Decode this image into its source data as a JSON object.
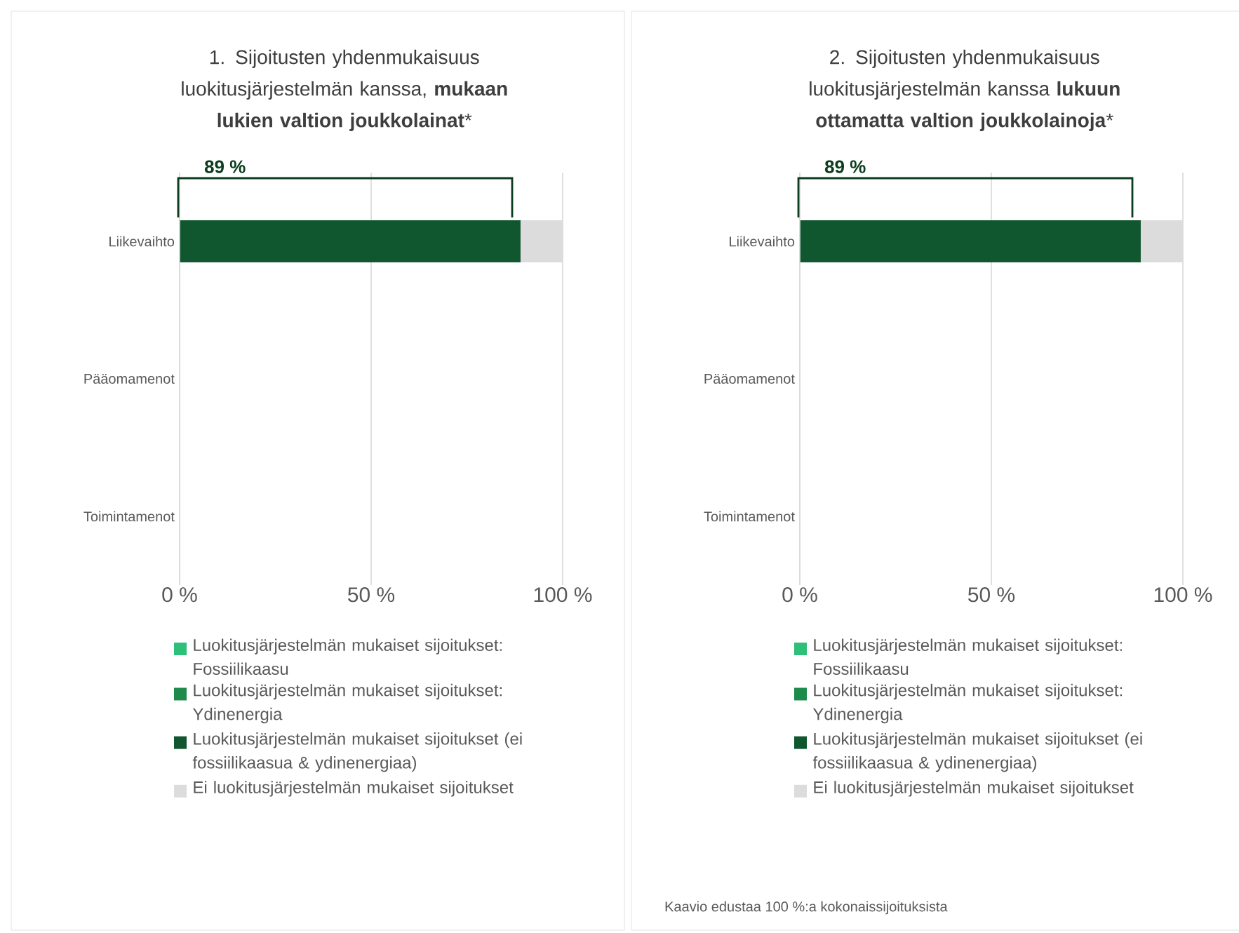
{
  "chart_data": [
    {
      "type": "bar",
      "orientation": "horizontal",
      "stacked": true,
      "title": "1. Sijoitusten yhdenmukaisuus luokitusjärjestelmän kanssa, **mukaan lukien valtion joukkolainat***",
      "categories": [
        "Liikevaihto",
        "Pääomamenot",
        "Toimintamenot"
      ],
      "series": [
        {
          "name": "Luokitusjärjestelmän mukaiset sijoitukset: Fossiilikaasu",
          "color": "#2ebf79",
          "values": [
            0,
            null,
            null
          ]
        },
        {
          "name": "Luokitusjärjestelmän mukaiset sijoitukset: Ydinenergia",
          "color": "#1e8a4c",
          "values": [
            0,
            null,
            null
          ]
        },
        {
          "name": "Luokitusjärjestelmän mukaiset sijoitukset (ei fossiilikaasua & ydinenergiaa)",
          "color": "#10572f",
          "values": [
            89,
            null,
            null
          ]
        },
        {
          "name": "Ei luokitusjärjestelmän mukaiset sijoitukset",
          "color": "#dcdcdd",
          "values": [
            11,
            null,
            null
          ]
        }
      ],
      "xlim": [
        0,
        100
      ],
      "xticks": [
        {
          "value": 0,
          "label": "0 %"
        },
        {
          "value": 50,
          "label": "50 %"
        },
        {
          "value": 100,
          "label": "100 %"
        }
      ],
      "grid": "x",
      "legend": "bottom",
      "annotations": [
        "89 %"
      ]
    },
    {
      "type": "bar",
      "orientation": "horizontal",
      "stacked": true,
      "title": "2. Sijoitusten yhdenmukaisuus luokitusjärjestelmän kanssa **lukuun ottamatta valtion joukkolainoja***",
      "categories": [
        "Liikevaihto",
        "Pääomamenot",
        "Toimintamenot"
      ],
      "series": [
        {
          "name": "Luokitusjärjestelmän mukaiset sijoitukset: Fossiilikaasu",
          "color": "#2ebf79",
          "values": [
            0,
            null,
            null
          ]
        },
        {
          "name": "Luokitusjärjestelmän mukaiset sijoitukset: Ydinenergia",
          "color": "#1e8a4c",
          "values": [
            0,
            null,
            null
          ]
        },
        {
          "name": "Luokitusjärjestelmän mukaiset sijoitukset (ei fossiilikaasua & ydinenergiaa)",
          "color": "#10572f",
          "values": [
            89,
            null,
            null
          ]
        },
        {
          "name": "Ei luokitusjärjestelmän mukaiset sijoitukset",
          "color": "#dcdcdd",
          "values": [
            11,
            null,
            null
          ]
        }
      ],
      "xlim": [
        0,
        100
      ],
      "xticks": [
        {
          "value": 0,
          "label": "0 %"
        },
        {
          "value": 50,
          "label": "50 %"
        },
        {
          "value": 100,
          "label": "100 %"
        }
      ],
      "grid": "x",
      "legend": "bottom",
      "annotations": [
        "89 %",
        "Kaavio edustaa 100 %:a kokonaissijoituksista"
      ]
    }
  ]
}
